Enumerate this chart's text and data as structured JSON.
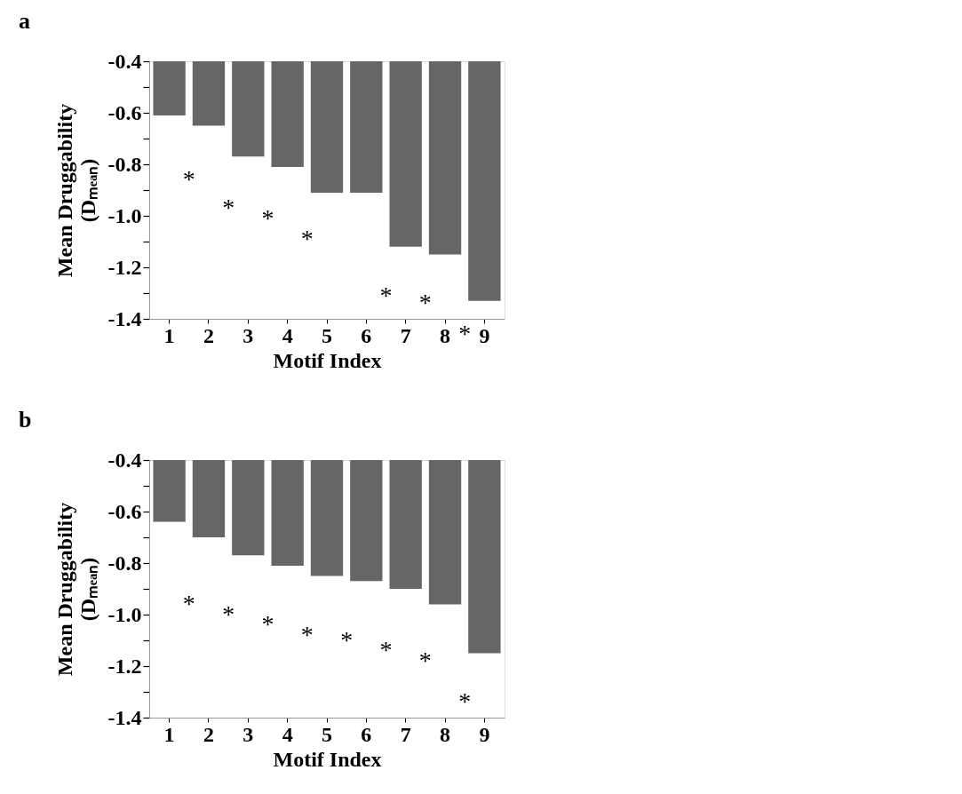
{
  "chart_data": [
    {
      "type": "bar",
      "title": "a",
      "xlabel": "Motif Index",
      "ylabel": "Mean Druggability (Dₘₑₐₙ)",
      "categories": [
        "1",
        "2",
        "3",
        "4",
        "5",
        "6",
        "7",
        "8",
        "9"
      ],
      "values": [
        -0.61,
        -0.65,
        -0.77,
        -0.81,
        -0.91,
        -0.91,
        -1.12,
        -1.15,
        -1.33
      ],
      "color": "#666666",
      "ylim": [
        -1.4,
        -0.4
      ],
      "yticks": [
        -1.4,
        {
          "value": -1.3,
          "label": null
        },
        -1.2,
        {
          "value": -1.1,
          "label": null
        },
        {
          "value": -1.0,
          "label": "-1.0"
        },
        {
          "value": -0.9,
          "label": null
        },
        -0.8,
        {
          "value": -0.7,
          "label": null
        },
        -0.6,
        {
          "value": -0.5,
          "label": null
        },
        -0.4
      ],
      "grid": false,
      "legend": false,
      "annotations": [
        "*",
        "*",
        "*",
        "*",
        "*",
        "*",
        "*"
      ]
    },
    {
      "type": "bar",
      "title": "b",
      "xlabel": "Motif Index",
      "ylabel": "Mean Druggability (Dₘₑₐₙ)",
      "categories": [
        "1",
        "2",
        "3",
        "4",
        "5",
        "6",
        "7",
        "8",
        "9"
      ],
      "values": [
        -0.64,
        -0.7,
        -0.77,
        -0.81,
        -0.85,
        -0.87,
        -0.9,
        -0.96,
        -1.15
      ],
      "color": "#666666",
      "ylim": [
        -1.4,
        -0.4
      ],
      "yticks": [
        -1.4,
        {
          "value": -1.3,
          "label": null
        },
        -1.2,
        {
          "value": -1.1,
          "label": null
        },
        {
          "value": -1.0,
          "label": "-1.0"
        },
        {
          "value": -0.9,
          "label": null
        },
        -0.8,
        {
          "value": -0.7,
          "label": null
        },
        -0.6,
        {
          "value": -0.5,
          "label": null
        },
        -0.4
      ],
      "grid": false,
      "legend": false,
      "annotations": [
        "*",
        "*",
        "*",
        "*",
        "*",
        "*",
        "*",
        "*"
      ]
    }
  ]
}
